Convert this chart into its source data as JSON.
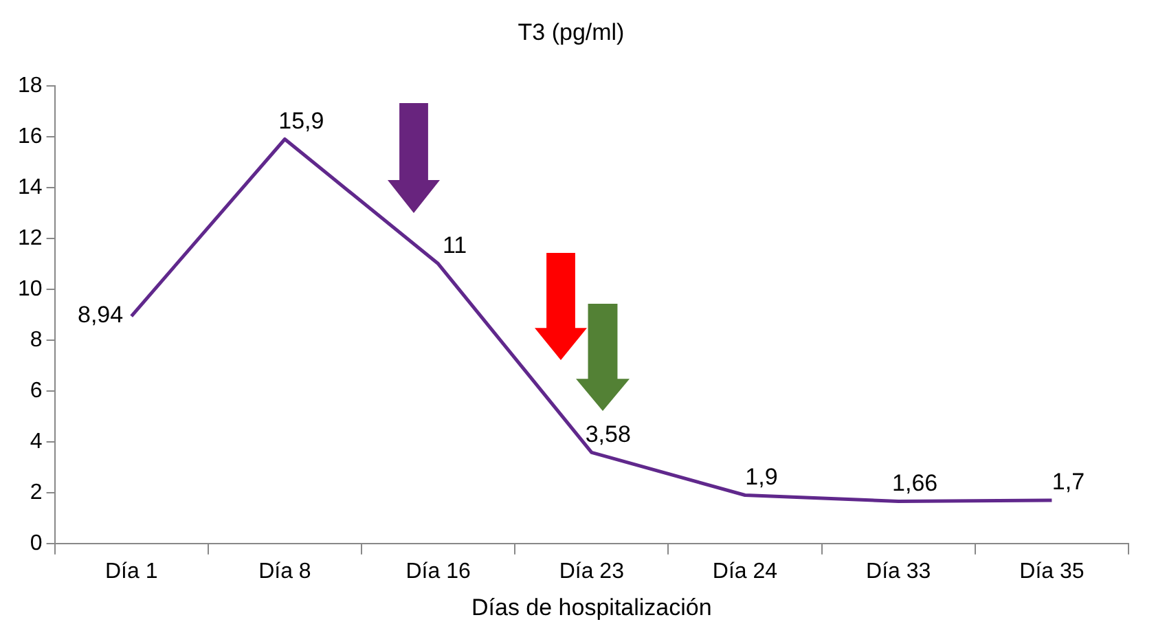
{
  "chart_data": {
    "type": "line",
    "title": "T3 (pg/ml)",
    "xlabel": "Días de hospitalización",
    "categories": [
      "Día 1",
      "Día 8",
      "Día 16",
      "Día 23",
      "Día 24",
      "Día 33",
      "Día 35"
    ],
    "series": [
      {
        "color": "#60288c",
        "values": [
          8.94,
          15.9,
          11,
          3.58,
          1.9,
          1.66,
          1.7
        ],
        "value_labels": [
          "8,94",
          "15,9",
          "11",
          "3,58",
          "1,9",
          "1,66",
          "1,7"
        ]
      }
    ],
    "ylim": [
      0,
      18
    ],
    "yticks": [
      0,
      2,
      4,
      6,
      8,
      10,
      12,
      14,
      16,
      18
    ],
    "marker": "none",
    "line_style": "solid",
    "legend": false,
    "grid": false
  }
}
